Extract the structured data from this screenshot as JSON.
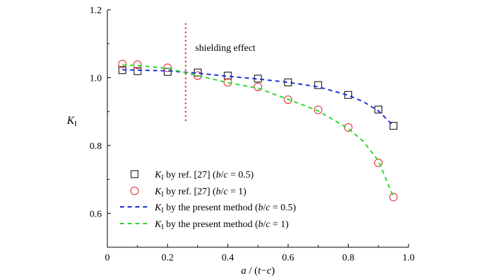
{
  "chart_data": {
    "type": "scatter",
    "xlabel": {
      "a": "a",
      "sep": " / (",
      "t": "t",
      "minus": "−",
      "c": "c",
      "close": ")"
    },
    "ylabel": {
      "main": "K",
      "sub": "I"
    },
    "xlim": [
      0,
      1.0
    ],
    "ylim": [
      0.5,
      1.2
    ],
    "xticks": [
      0,
      0.2,
      0.4,
      0.6,
      0.8,
      1.0
    ],
    "xtick_labels": [
      "0",
      "0.2",
      "0.4",
      "0.6",
      "0.8",
      "1.0"
    ],
    "yticks": [
      0.6,
      0.8,
      1.0,
      1.2
    ],
    "ytick_labels": [
      "0.6",
      "0.8",
      "1.0",
      "1.2"
    ],
    "grid": false,
    "legend_position": "bottom-left",
    "annotation": {
      "text": "shielding effect",
      "x": 0.26,
      "y_range": [
        0.87,
        1.16
      ],
      "color": "#e02020"
    },
    "series": [
      {
        "marker": "square",
        "color": "#000000",
        "legend": {
          "k": "K",
          "sub": "I",
          "by": " by ref. [27]  (",
          "b": "b",
          "slash": "/",
          "c": "c",
          "val": " = 0.5)"
        },
        "x": [
          0.05,
          0.1,
          0.2,
          0.3,
          0.4,
          0.5,
          0.6,
          0.7,
          0.8,
          0.9,
          0.95
        ],
        "y": [
          1.022,
          1.019,
          1.017,
          1.015,
          1.006,
          0.997,
          0.986,
          0.978,
          0.949,
          0.906,
          0.858
        ]
      },
      {
        "marker": "circle",
        "color": "#e02020",
        "legend": {
          "k": "K",
          "sub": "I",
          "by": " by ref. [27]  (",
          "b": "b",
          "slash": "/",
          "c": "c",
          "val": " = 1)"
        },
        "x": [
          0.05,
          0.1,
          0.2,
          0.3,
          0.4,
          0.5,
          0.6,
          0.7,
          0.8,
          0.9,
          0.95
        ],
        "y": [
          1.04,
          1.038,
          1.029,
          1.006,
          0.986,
          0.973,
          0.935,
          0.905,
          0.853,
          0.749,
          0.648
        ]
      },
      {
        "marker": "dashed-line",
        "color": "#1f2fd6",
        "legend": {
          "k": "K",
          "sub": "I",
          "by": " by the present  method (",
          "b": "b",
          "slash": "/",
          "c": "c",
          "val": " = 0.5)"
        },
        "x": [
          0.05,
          0.1,
          0.2,
          0.3,
          0.4,
          0.5,
          0.6,
          0.7,
          0.8,
          0.85,
          0.9,
          0.95
        ],
        "y": [
          1.023,
          1.022,
          1.02,
          1.013,
          1.004,
          0.996,
          0.986,
          0.973,
          0.948,
          0.929,
          0.902,
          0.858
        ]
      },
      {
        "marker": "dashed-line",
        "color": "#2ed52e",
        "legend": {
          "k": "K",
          "sub": "I",
          "by": " by the present  method (",
          "b": "b",
          "slash": "/",
          "c": "c",
          "val": " = 1)"
        },
        "x": [
          0.05,
          0.1,
          0.2,
          0.3,
          0.4,
          0.5,
          0.6,
          0.7,
          0.8,
          0.85,
          0.9,
          0.95
        ],
        "y": [
          1.037,
          1.036,
          1.027,
          1.006,
          0.985,
          0.969,
          0.936,
          0.902,
          0.85,
          0.812,
          0.755,
          0.648
        ]
      }
    ]
  }
}
